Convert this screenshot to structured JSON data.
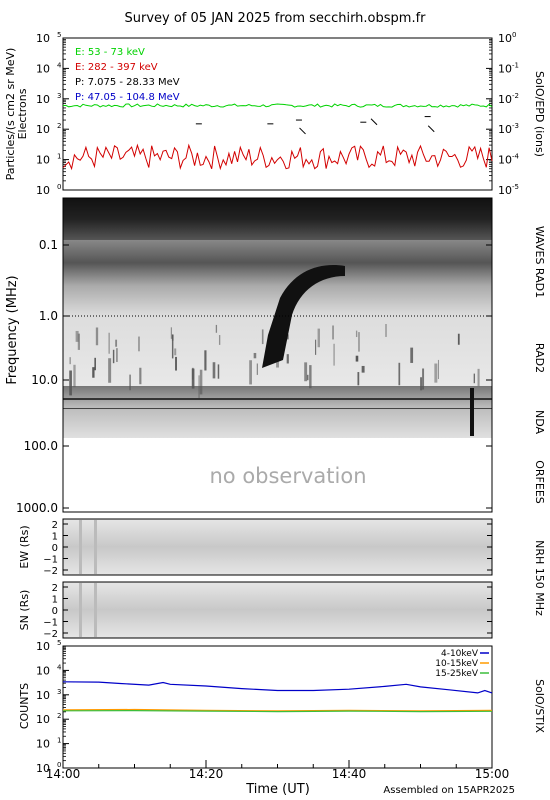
{
  "title": "Survey of 05 JAN 2025 from secchirh.obspm.fr",
  "footer": "Assembled on 15APR2025",
  "colors": {
    "green": "#00d200",
    "red": "#d20000",
    "black": "#000000",
    "blue": "#0000c8",
    "orange": "#ff9a00",
    "stix_green": "#3cbe3c"
  },
  "chart_data": [
    {
      "id": "epd",
      "type": "line",
      "ylabel": "Particles/(s cm2 sr MeV)",
      "ylabel2": "Electrons",
      "right_label": "SoIO/EPD (ions)",
      "y_scale": "log",
      "ylim": [
        1,
        100000
      ],
      "y_ticks": [
        [
          "10",
          "0"
        ],
        [
          "10",
          "1"
        ],
        [
          "10",
          "2"
        ],
        [
          "10",
          "3"
        ],
        [
          "10",
          "4"
        ],
        [
          "10",
          "5"
        ]
      ],
      "y2_ticks": [
        [
          "10",
          "-5"
        ],
        [
          "10",
          "-4"
        ],
        [
          "10",
          "-3"
        ],
        [
          "10",
          "-2"
        ],
        [
          "10",
          "-1"
        ],
        [
          "10",
          "0"
        ]
      ],
      "xlim_min": [
        0,
        60
      ],
      "series": [
        {
          "name": "E: 53 - 73 keV",
          "color": "#00d200",
          "base": 600,
          "noise": 0.35
        },
        {
          "name": "E: 282 - 397 keV",
          "color": "#d20000",
          "base": 12,
          "noise": 1.0
        },
        {
          "name": "P: 7.075 - 28.33 MeV",
          "color": "#000000",
          "points": [
            [
              19,
              150
            ],
            [
              29,
              150
            ],
            [
              33,
              200
            ],
            [
              33.5,
              110
            ],
            [
              42,
              170
            ],
            [
              43.5,
              220
            ],
            [
              51,
              260
            ],
            [
              51.5,
              130
            ]
          ]
        },
        {
          "name": "P: 47.05 - 104.8 MeV",
          "color": "#0000c8",
          "points": []
        }
      ]
    },
    {
      "id": "waves",
      "type": "heatmap",
      "ylabel": "Frequency (MHz)",
      "y_ticks": [
        "0.1",
        "1.0",
        "10.0",
        "100.0",
        "1000.0"
      ],
      "right_labels": [
        "WAVES RAD1",
        "RAD2",
        "NDA",
        "ORFEES"
      ],
      "no_observation": "no observation"
    },
    {
      "id": "nrh_ew",
      "type": "heatmap",
      "ylabel": "EW (Rs)",
      "y_ticks": [
        "2",
        "1",
        "0",
        "−1",
        "−2"
      ],
      "ylim": [
        -2.4,
        2.4
      ]
    },
    {
      "id": "nrh_sn",
      "type": "heatmap",
      "ylabel": "SN (Rs)",
      "y_ticks": [
        "2",
        "1",
        "0",
        "−1",
        "−2"
      ],
      "ylim": [
        -2.4,
        2.4
      ],
      "right_label": "NRH 150 MHz"
    },
    {
      "id": "stix",
      "type": "line",
      "ylabel": "COUNTS",
      "right_label": "SoIO/STIX",
      "y_scale": "log",
      "ylim": [
        1,
        100000
      ],
      "y_ticks": [
        [
          "10",
          "0"
        ],
        [
          "10",
          "1"
        ],
        [
          "10",
          "2"
        ],
        [
          "10",
          "3"
        ],
        [
          "10",
          "4"
        ],
        [
          "10",
          "5"
        ]
      ],
      "series": [
        {
          "name": "4-10keV",
          "color": "#0000c8",
          "points": [
            [
              0,
              3400
            ],
            [
              5,
              3300
            ],
            [
              8,
              2900
            ],
            [
              12,
              2500
            ],
            [
              14,
              3200
            ],
            [
              15,
              2700
            ],
            [
              20,
              2300
            ],
            [
              25,
              1800
            ],
            [
              30,
              1500
            ],
            [
              35,
              1500
            ],
            [
              40,
              1700
            ],
            [
              45,
              2200
            ],
            [
              48,
              2700
            ],
            [
              50,
              2100
            ],
            [
              54,
              1600
            ],
            [
              58,
              1200
            ],
            [
              59,
              1500
            ],
            [
              60,
              1200
            ]
          ]
        },
        {
          "name": "10-15keV",
          "color": "#ff9a00",
          "points": [
            [
              0,
              240
            ],
            [
              10,
              250
            ],
            [
              20,
              230
            ],
            [
              30,
              220
            ],
            [
              40,
              230
            ],
            [
              50,
              220
            ],
            [
              60,
              230
            ]
          ]
        },
        {
          "name": "15-25keV",
          "color": "#3cbe3c",
          "points": [
            [
              0,
              220
            ],
            [
              10,
              225
            ],
            [
              20,
              215
            ],
            [
              30,
              205
            ],
            [
              40,
              215
            ],
            [
              50,
              205
            ],
            [
              60,
              210
            ]
          ]
        }
      ]
    }
  ],
  "x_axis": {
    "xlabel": "Time (UT)",
    "ticks": [
      {
        "min": 0,
        "label": "14:00"
      },
      {
        "min": 20,
        "label": "14:20"
      },
      {
        "min": 40,
        "label": "14:40"
      },
      {
        "min": 60,
        "label": "15:00"
      }
    ]
  }
}
